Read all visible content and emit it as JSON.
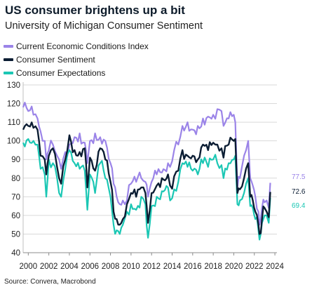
{
  "header": {
    "title": "US consumer brightens up a bit",
    "subtitle": "University of Michigan Consumer Sentiment"
  },
  "footer": {
    "source": "Source: Convera, Macrobond"
  },
  "colors": {
    "current": "#9b84e8",
    "sentiment": "#0b1d33",
    "expectations": "#1bc7b4",
    "grid": "#d9d9d9"
  },
  "chart_data": {
    "type": "line",
    "title": "US consumer brightens up a bit",
    "subtitle": "University of Michigan Consumer Sentiment",
    "xlabel": "",
    "ylabel": "",
    "xlim": [
      1999.5,
      2024.2
    ],
    "ylim": [
      40,
      130
    ],
    "x_ticks": [
      2000,
      2002,
      2004,
      2006,
      2008,
      2010,
      2012,
      2014,
      2016,
      2018,
      2020,
      2022,
      2024
    ],
    "y_ticks": [
      40,
      50,
      60,
      70,
      80,
      90,
      100,
      110,
      120,
      130
    ],
    "grid": "horizontal",
    "legend_position": "top-left",
    "series": [
      {
        "name": "Current Economic Conditions Index",
        "color_key": "current",
        "end_label": "77.5",
        "points": [
          [
            1999.5,
            118
          ],
          [
            2000.0,
            116
          ],
          [
            2000.5,
            114
          ],
          [
            2000.9,
            112
          ],
          [
            2001.2,
            105
          ],
          [
            2001.6,
            100
          ],
          [
            2001.75,
            90
          ],
          [
            2002.0,
            95
          ],
          [
            2002.4,
            98
          ],
          [
            2002.8,
            92
          ],
          [
            2003.0,
            90
          ],
          [
            2003.2,
            85
          ],
          [
            2003.6,
            94
          ],
          [
            2004.0,
            98
          ],
          [
            2004.5,
            102
          ],
          [
            2005.0,
            104
          ],
          [
            2005.5,
            99
          ],
          [
            2005.75,
            88
          ],
          [
            2006.0,
            100
          ],
          [
            2006.5,
            104
          ],
          [
            2007.0,
            102
          ],
          [
            2007.5,
            100
          ],
          [
            2008.0,
            88
          ],
          [
            2008.3,
            77
          ],
          [
            2008.6,
            70
          ],
          [
            2008.9,
            66
          ],
          [
            2009.2,
            68
          ],
          [
            2009.6,
            68
          ],
          [
            2010.0,
            77
          ],
          [
            2010.5,
            78
          ],
          [
            2011.0,
            80
          ],
          [
            2011.4,
            78
          ],
          [
            2011.65,
            70
          ],
          [
            2012.0,
            78
          ],
          [
            2012.5,
            82
          ],
          [
            2013.0,
            83
          ],
          [
            2013.6,
            88
          ],
          [
            2013.8,
            86
          ],
          [
            2014.2,
            95
          ],
          [
            2014.6,
            98
          ],
          [
            2015.0,
            108
          ],
          [
            2015.5,
            110
          ],
          [
            2016.0,
            106
          ],
          [
            2016.5,
            108
          ],
          [
            2017.0,
            112
          ],
          [
            2017.5,
            113
          ],
          [
            2018.0,
            114
          ],
          [
            2018.4,
            117
          ],
          [
            2018.8,
            116
          ],
          [
            2019.0,
            108
          ],
          [
            2019.5,
            112
          ],
          [
            2020.0,
            114
          ],
          [
            2020.15,
            110
          ],
          [
            2020.35,
            75
          ],
          [
            2020.6,
            80
          ],
          [
            2021.0,
            92
          ],
          [
            2021.4,
            100
          ],
          [
            2021.6,
            80
          ],
          [
            2021.85,
            76
          ],
          [
            2022.1,
            70
          ],
          [
            2022.4,
            62
          ],
          [
            2022.5,
            55
          ],
          [
            2022.75,
            64
          ],
          [
            2023.0,
            67
          ],
          [
            2023.2,
            68
          ],
          [
            2023.4,
            64
          ],
          [
            2023.55,
            77.5
          ]
        ]
      },
      {
        "name": "Consumer Sentiment",
        "color_key": "sentiment",
        "end_label": "72.6",
        "points": [
          [
            1999.5,
            106
          ],
          [
            2000.0,
            108
          ],
          [
            2000.5,
            107
          ],
          [
            2000.9,
            106
          ],
          [
            2001.2,
            92
          ],
          [
            2001.6,
            90
          ],
          [
            2001.75,
            82
          ],
          [
            2002.0,
            92
          ],
          [
            2002.4,
            96
          ],
          [
            2002.8,
            86
          ],
          [
            2003.0,
            80
          ],
          [
            2003.2,
            77
          ],
          [
            2003.6,
            90
          ],
          [
            2004.0,
            103
          ],
          [
            2004.5,
            95
          ],
          [
            2005.0,
            94
          ],
          [
            2005.5,
            96
          ],
          [
            2005.75,
            75
          ],
          [
            2006.0,
            91
          ],
          [
            2006.5,
            84
          ],
          [
            2007.0,
            96
          ],
          [
            2007.5,
            90
          ],
          [
            2008.0,
            78
          ],
          [
            2008.3,
            62
          ],
          [
            2008.6,
            58
          ],
          [
            2008.9,
            55
          ],
          [
            2009.2,
            58
          ],
          [
            2009.6,
            66
          ],
          [
            2010.0,
            72
          ],
          [
            2010.5,
            70
          ],
          [
            2011.0,
            75
          ],
          [
            2011.4,
            72
          ],
          [
            2011.65,
            56
          ],
          [
            2012.0,
            72
          ],
          [
            2012.5,
            76
          ],
          [
            2013.0,
            80
          ],
          [
            2013.6,
            82
          ],
          [
            2013.8,
            76
          ],
          [
            2014.2,
            81
          ],
          [
            2014.6,
            84
          ],
          [
            2015.0,
            95
          ],
          [
            2015.5,
            92
          ],
          [
            2016.0,
            92
          ],
          [
            2016.5,
            90
          ],
          [
            2017.0,
            98
          ],
          [
            2017.5,
            95
          ],
          [
            2018.0,
            99
          ],
          [
            2018.4,
            98
          ],
          [
            2018.8,
            96
          ],
          [
            2019.0,
            91
          ],
          [
            2019.5,
            98
          ],
          [
            2020.0,
            100
          ],
          [
            2020.15,
            101
          ],
          [
            2020.35,
            72
          ],
          [
            2020.6,
            74
          ],
          [
            2021.0,
            80
          ],
          [
            2021.4,
            88
          ],
          [
            2021.6,
            70
          ],
          [
            2021.85,
            68
          ],
          [
            2022.1,
            62
          ],
          [
            2022.4,
            55
          ],
          [
            2022.5,
            50
          ],
          [
            2022.75,
            58
          ],
          [
            2023.0,
            64
          ],
          [
            2023.2,
            62
          ],
          [
            2023.4,
            59
          ],
          [
            2023.55,
            72.6
          ]
        ]
      },
      {
        "name": "Consumer Expectations",
        "color_key": "expectations",
        "end_label": "69.4",
        "points": [
          [
            1999.5,
            99
          ],
          [
            2000.0,
            101
          ],
          [
            2000.5,
            100
          ],
          [
            2000.9,
            98
          ],
          [
            2001.2,
            85
          ],
          [
            2001.6,
            82
          ],
          [
            2001.75,
            70
          ],
          [
            2002.0,
            90
          ],
          [
            2002.4,
            88
          ],
          [
            2002.8,
            80
          ],
          [
            2003.0,
            72
          ],
          [
            2003.2,
            70
          ],
          [
            2003.6,
            85
          ],
          [
            2004.0,
            95
          ],
          [
            2004.5,
            88
          ],
          [
            2005.0,
            85
          ],
          [
            2005.5,
            84
          ],
          [
            2005.75,
            63
          ],
          [
            2006.0,
            82
          ],
          [
            2006.5,
            72
          ],
          [
            2007.0,
            88
          ],
          [
            2007.5,
            80
          ],
          [
            2008.0,
            70
          ],
          [
            2008.3,
            55
          ],
          [
            2008.6,
            52
          ],
          [
            2008.9,
            50
          ],
          [
            2009.2,
            55
          ],
          [
            2009.6,
            62
          ],
          [
            2010.0,
            66
          ],
          [
            2010.5,
            63
          ],
          [
            2011.0,
            70
          ],
          [
            2011.4,
            66
          ],
          [
            2011.65,
            48
          ],
          [
            2012.0,
            65
          ],
          [
            2012.5,
            70
          ],
          [
            2013.0,
            73
          ],
          [
            2013.6,
            75
          ],
          [
            2013.8,
            68
          ],
          [
            2014.2,
            74
          ],
          [
            2014.6,
            78
          ],
          [
            2015.0,
            88
          ],
          [
            2015.5,
            86
          ],
          [
            2016.0,
            84
          ],
          [
            2016.5,
            82
          ],
          [
            2017.0,
            88
          ],
          [
            2017.5,
            86
          ],
          [
            2018.0,
            90
          ],
          [
            2018.4,
            88
          ],
          [
            2018.8,
            87
          ],
          [
            2019.0,
            80
          ],
          [
            2019.5,
            88
          ],
          [
            2020.0,
            90
          ],
          [
            2020.15,
            92
          ],
          [
            2020.35,
            66
          ],
          [
            2020.6,
            68
          ],
          [
            2021.0,
            72
          ],
          [
            2021.4,
            80
          ],
          [
            2021.6,
            65
          ],
          [
            2021.85,
            64
          ],
          [
            2022.1,
            58
          ],
          [
            2022.4,
            52
          ],
          [
            2022.5,
            47
          ],
          [
            2022.75,
            56
          ],
          [
            2023.0,
            60
          ],
          [
            2023.2,
            60
          ],
          [
            2023.4,
            56
          ],
          [
            2023.55,
            69.4
          ]
        ]
      }
    ]
  }
}
